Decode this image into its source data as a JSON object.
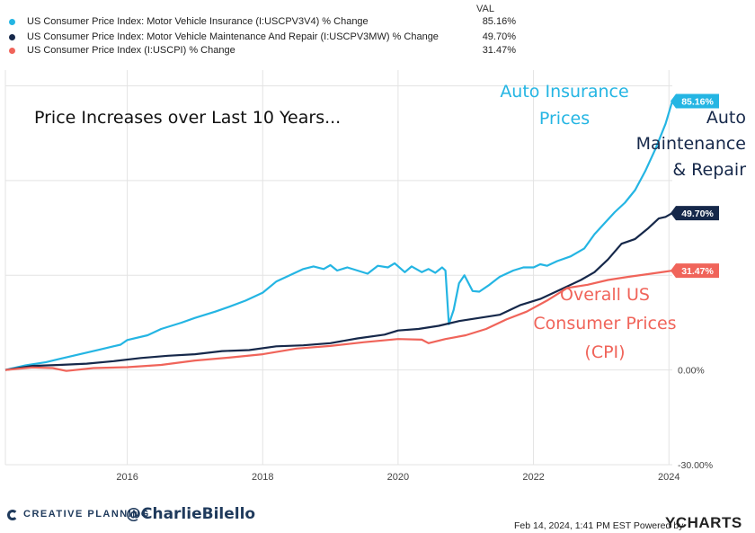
{
  "legend": {
    "header": "VAL",
    "items": [
      {
        "label": "US Consumer Price Index: Motor Vehicle Insurance (I:USCPV3V4) % Change",
        "value": "85.16%",
        "color": "#24b5e3"
      },
      {
        "label": "US Consumer Price Index: Motor Vehicle Maintenance And Repair (I:USCPV3MW) % Change",
        "value": "49.70%",
        "color": "#16284a"
      },
      {
        "label": "US Consumer Price Index (I:USCPI) % Change",
        "value": "31.47%",
        "color": "#f0645a"
      }
    ]
  },
  "chart_data": {
    "type": "line",
    "title": "Price  Increases over Last 10 Years...",
    "xlim": [
      2014.2,
      2024.05
    ],
    "ylim": [
      -30,
      95
    ],
    "x_ticks": [
      2016,
      2018,
      2020,
      2022,
      2024
    ],
    "x_tick_labels": [
      "2016",
      "2018",
      "2020",
      "2022",
      "2024"
    ],
    "y_tick_labels": [
      {
        "value": 0,
        "label": "0.00%"
      },
      {
        "value": -30,
        "label": "-30.00%"
      }
    ],
    "gridlines_y": [
      -30,
      0,
      30,
      60,
      90
    ],
    "gridlines_x": [
      2014.2,
      2016,
      2018,
      2020,
      2022,
      2024
    ],
    "series": [
      {
        "name": "US Consumer Price Index: Motor Vehicle Insurance (I:USCPV3V4) % Change",
        "color": "#24b5e3",
        "end_label": "85.16%",
        "points": [
          [
            2014.2,
            0
          ],
          [
            2014.5,
            1.5
          ],
          [
            2014.8,
            2.5
          ],
          [
            2015.0,
            3.5
          ],
          [
            2015.3,
            5
          ],
          [
            2015.6,
            6.5
          ],
          [
            2015.9,
            8
          ],
          [
            2016.0,
            9.5
          ],
          [
            2016.3,
            11
          ],
          [
            2016.5,
            13
          ],
          [
            2016.8,
            15
          ],
          [
            2017.0,
            16.5
          ],
          [
            2017.3,
            18.5
          ],
          [
            2017.5,
            20
          ],
          [
            2017.75,
            22
          ],
          [
            2018.0,
            24.5
          ],
          [
            2018.2,
            28
          ],
          [
            2018.4,
            30
          ],
          [
            2018.6,
            32
          ],
          [
            2018.75,
            32.8
          ],
          [
            2018.9,
            32
          ],
          [
            2019.0,
            33.2
          ],
          [
            2019.1,
            31.5
          ],
          [
            2019.25,
            32.5
          ],
          [
            2019.4,
            31.5
          ],
          [
            2019.55,
            30.5
          ],
          [
            2019.7,
            33
          ],
          [
            2019.85,
            32.5
          ],
          [
            2019.95,
            33.8
          ],
          [
            2020.1,
            31
          ],
          [
            2020.2,
            32.8
          ],
          [
            2020.35,
            31
          ],
          [
            2020.45,
            32
          ],
          [
            2020.55,
            30.8
          ],
          [
            2020.65,
            32.5
          ],
          [
            2020.7,
            31.5
          ],
          [
            2020.75,
            14.5
          ],
          [
            2020.82,
            19
          ],
          [
            2020.9,
            27.5
          ],
          [
            2020.98,
            30
          ],
          [
            2021.1,
            25
          ],
          [
            2021.2,
            24.8
          ],
          [
            2021.35,
            27
          ],
          [
            2021.5,
            29.5
          ],
          [
            2021.7,
            31.5
          ],
          [
            2021.85,
            32.5
          ],
          [
            2022.0,
            32.5
          ],
          [
            2022.1,
            33.5
          ],
          [
            2022.2,
            33
          ],
          [
            2022.35,
            34.5
          ],
          [
            2022.55,
            36
          ],
          [
            2022.75,
            38.5
          ],
          [
            2022.9,
            43
          ],
          [
            2023.05,
            46.5
          ],
          [
            2023.2,
            50
          ],
          [
            2023.35,
            53
          ],
          [
            2023.5,
            57
          ],
          [
            2023.65,
            63
          ],
          [
            2023.8,
            70
          ],
          [
            2023.95,
            78
          ],
          [
            2024.05,
            85.16
          ]
        ]
      },
      {
        "name": "US Consumer Price Index: Motor Vehicle Maintenance And Repair (I:USCPV3MW) % Change",
        "color": "#16284a",
        "end_label": "49.70%",
        "points": [
          [
            2014.2,
            0
          ],
          [
            2014.6,
            1.3
          ],
          [
            2015.0,
            1.6
          ],
          [
            2015.4,
            2.0
          ],
          [
            2015.8,
            2.8
          ],
          [
            2016.2,
            3.8
          ],
          [
            2016.6,
            4.5
          ],
          [
            2017.0,
            5.0
          ],
          [
            2017.4,
            6.0
          ],
          [
            2017.8,
            6.3
          ],
          [
            2018.2,
            7.5
          ],
          [
            2018.6,
            7.8
          ],
          [
            2019.0,
            8.5
          ],
          [
            2019.4,
            10.0
          ],
          [
            2019.8,
            11.2
          ],
          [
            2020.0,
            12.5
          ],
          [
            2020.3,
            13.0
          ],
          [
            2020.6,
            14.0
          ],
          [
            2020.9,
            15.5
          ],
          [
            2021.2,
            16.5
          ],
          [
            2021.5,
            17.5
          ],
          [
            2021.8,
            20.5
          ],
          [
            2022.1,
            22.5
          ],
          [
            2022.4,
            25.5
          ],
          [
            2022.7,
            28.5
          ],
          [
            2022.9,
            31.0
          ],
          [
            2023.1,
            35.0
          ],
          [
            2023.3,
            40.0
          ],
          [
            2023.5,
            41.5
          ],
          [
            2023.7,
            45.0
          ],
          [
            2023.85,
            48.0
          ],
          [
            2023.95,
            48.5
          ],
          [
            2024.05,
            49.7
          ]
        ]
      },
      {
        "name": "US Consumer Price Index (I:USCPI) % Change",
        "color": "#f0645a",
        "end_label": "31.47%",
        "points": [
          [
            2014.2,
            0
          ],
          [
            2014.6,
            0.8
          ],
          [
            2014.9,
            0.6
          ],
          [
            2015.1,
            -0.3
          ],
          [
            2015.5,
            0.6
          ],
          [
            2016.0,
            0.9
          ],
          [
            2016.5,
            1.6
          ],
          [
            2017.0,
            3.0
          ],
          [
            2017.5,
            3.9
          ],
          [
            2018.0,
            5.0
          ],
          [
            2018.5,
            6.8
          ],
          [
            2019.0,
            7.6
          ],
          [
            2019.5,
            8.8
          ],
          [
            2020.0,
            9.8
          ],
          [
            2020.35,
            9.6
          ],
          [
            2020.45,
            8.5
          ],
          [
            2020.7,
            9.8
          ],
          [
            2021.0,
            11.0
          ],
          [
            2021.3,
            13.0
          ],
          [
            2021.6,
            16.0
          ],
          [
            2021.9,
            18.5
          ],
          [
            2022.2,
            22.0
          ],
          [
            2022.5,
            26.0
          ],
          [
            2022.8,
            27.0
          ],
          [
            2023.1,
            28.5
          ],
          [
            2023.4,
            29.5
          ],
          [
            2023.7,
            30.4
          ],
          [
            2024.05,
            31.47
          ]
        ]
      }
    ],
    "annotations": [
      {
        "series": 0,
        "lines": [
          "Auto Insurance",
          "Prices"
        ]
      },
      {
        "series": 1,
        "lines": [
          "Auto",
          "Maintenance",
          "& Repair"
        ]
      },
      {
        "series": 2,
        "lines": [
          "Overall US",
          "Consumer Prices",
          "(CPI)"
        ]
      }
    ]
  },
  "footer": {
    "brand": "CREATIVE PLANNING",
    "handle": "@CharlieBilello",
    "timestamp": "Feb 14, 2024, 1:41 PM EST Powered by",
    "provider": "YCHARTS"
  }
}
